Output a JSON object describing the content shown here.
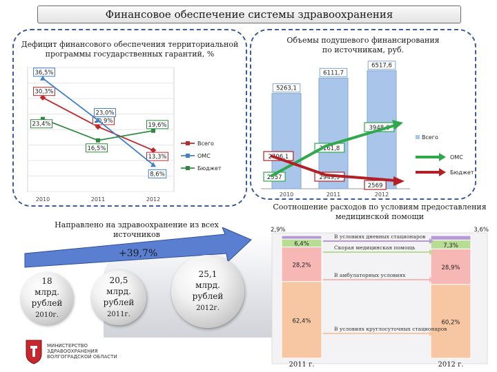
{
  "header": {
    "title": "Финансовое обеспечение системы здравоохранения"
  },
  "deficit_panel": {
    "title_line1": "Дефицит финансового обеспечения территориальной",
    "title_line2": "программы государственных гарантий, %"
  },
  "funding_panel": {
    "title_line1": "Объемы подушевого финансирования",
    "title_line2": "по источникам, руб."
  },
  "sources_panel": {
    "title": "Направлено на здравоохранение из всех источников",
    "growth_label": "+39,7%",
    "balls": [
      {
        "amount_line1": "18",
        "amount_line2": "млрд.",
        "amount_line3": "рублей",
        "year": "2010г."
      },
      {
        "amount_line1": "20,5",
        "amount_line2": "млрд.",
        "amount_line3": "рублей",
        "year": "2011г."
      },
      {
        "amount_line1": "25,1",
        "amount_line2": "млрд.",
        "amount_line3": "рублей",
        "year": "2012г."
      }
    ]
  },
  "ratio_panel": {
    "title_line1": "Соотношение расходов по условиям предоставления",
    "title_line2": "медицинской помощи"
  },
  "logo": {
    "line1": "МИНИСТЕРСТВО",
    "line2": "ЗДРАВООХРАНЕНИЯ",
    "line3": "ВОЛГОГРАДСКОЙ ОБЛАСТИ"
  },
  "chart_data": [
    {
      "type": "line",
      "categories": [
        "2010",
        "2011",
        "2012"
      ],
      "ylim": [
        0,
        40
      ],
      "grid": true,
      "legend": "right",
      "series": [
        {
          "name": "Всего",
          "values": [
            30.3,
            20.9,
            13.3
          ],
          "labels": [
            "30,3%",
            "20,9%",
            "13,3%"
          ],
          "color": "#c0282d"
        },
        {
          "name": "ОМС",
          "values": [
            36.5,
            23.0,
            8.6
          ],
          "labels": [
            "36,5%",
            "23,0%",
            "8,6%"
          ],
          "color": "#3f7fcf"
        },
        {
          "name": "Бюджет",
          "values": [
            23.4,
            16.5,
            19.6
          ],
          "labels": [
            "23,4%",
            "16,5%",
            "19,6%"
          ],
          "color": "#2e8b3e"
        }
      ]
    },
    {
      "type": "bar",
      "categories": [
        "2010",
        "2011",
        "2012"
      ],
      "ylim": [
        0,
        7000
      ],
      "legend": "right",
      "series": [
        {
          "name": "Всего",
          "values": [
            5263.1,
            6111.7,
            6517.6
          ],
          "labels": [
            "5263,1",
            "6111,7",
            "6517,6"
          ],
          "color": "#a9c6ea"
        }
      ],
      "segments": {
        "oms": [
          "2557",
          "3161,8",
          "3948,6"
        ],
        "budget": [
          "2706,1",
          "2949,9",
          "2569"
        ]
      },
      "arrow_legend": [
        {
          "name": "ОМС",
          "color": "#2ea84a"
        },
        {
          "name": "Бюджет",
          "color": "#b21f24"
        }
      ]
    },
    {
      "type": "bar",
      "stacked": true,
      "categories": [
        "2011 г.",
        "2012 г."
      ],
      "ylim": [
        0,
        100
      ],
      "series": [
        {
          "name": "В условиях круглосуточных стационаров",
          "values": [
            62.4,
            60.2
          ],
          "labels": [
            "62,4%",
            "60,2%"
          ],
          "color": "#f7c6a3"
        },
        {
          "name": "В амбулаторных условиях",
          "values": [
            28.2,
            28.9
          ],
          "labels": [
            "28,2%",
            "28,9%"
          ],
          "color": "#f6b7b5"
        },
        {
          "name": "Скорая медицинская помощь",
          "values": [
            6.4,
            7.3
          ],
          "labels": [
            "6,4%",
            "7,3%"
          ],
          "color": "#b9dc95"
        },
        {
          "name": "В условиях дневных стационаров",
          "values": [
            2.9,
            3.6
          ],
          "labels": [
            "2,9%",
            "3,6%"
          ],
          "color": "#b59ad6"
        }
      ]
    }
  ]
}
